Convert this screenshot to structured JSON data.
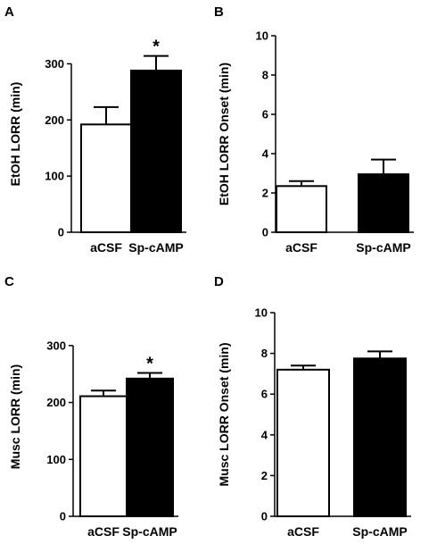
{
  "chart_data": [
    {
      "panel": "A",
      "type": "bar",
      "categories": [
        "aCSF",
        "Sp-cAMP"
      ],
      "values": [
        192,
        288
      ],
      "errors": [
        31,
        26
      ],
      "fills": [
        "#ffffff",
        "#000000"
      ],
      "ylabel": "EtOH LORR (min)",
      "ylim": [
        0,
        350
      ],
      "yticks": [
        0,
        100,
        200,
        300
      ],
      "annotations": [
        "",
        "*"
      ]
    },
    {
      "panel": "B",
      "type": "bar",
      "categories": [
        "aCSF",
        "Sp-cAMP"
      ],
      "values": [
        2.35,
        2.95
      ],
      "errors": [
        0.25,
        0.75
      ],
      "fills": [
        "#ffffff",
        "#000000"
      ],
      "ylabel": "EtOH LORR Onset (min)",
      "ylim": [
        0,
        10
      ],
      "yticks": [
        0,
        2,
        4,
        6,
        8,
        10
      ],
      "annotations": [
        "",
        ""
      ]
    },
    {
      "panel": "C",
      "type": "bar",
      "categories": [
        "aCSF",
        "Sp-cAMP"
      ],
      "values": [
        211,
        242
      ],
      "errors": [
        10,
        10
      ],
      "fills": [
        "#ffffff",
        "#000000"
      ],
      "ylabel": "Musc LORR (min)",
      "ylim": [
        0,
        350
      ],
      "yticks": [
        0,
        100,
        200,
        300
      ],
      "annotations": [
        "",
        "*"
      ]
    },
    {
      "panel": "D",
      "type": "bar",
      "categories": [
        "aCSF",
        "Sp-cAMP"
      ],
      "values": [
        7.2,
        7.75
      ],
      "errors": [
        0.2,
        0.35
      ],
      "fills": [
        "#ffffff",
        "#000000"
      ],
      "ylabel": "Musc LORR Onset (min)",
      "ylim": [
        0,
        10
      ],
      "yticks": [
        0,
        2,
        4,
        6,
        8,
        10
      ],
      "annotations": [
        "",
        ""
      ]
    }
  ]
}
